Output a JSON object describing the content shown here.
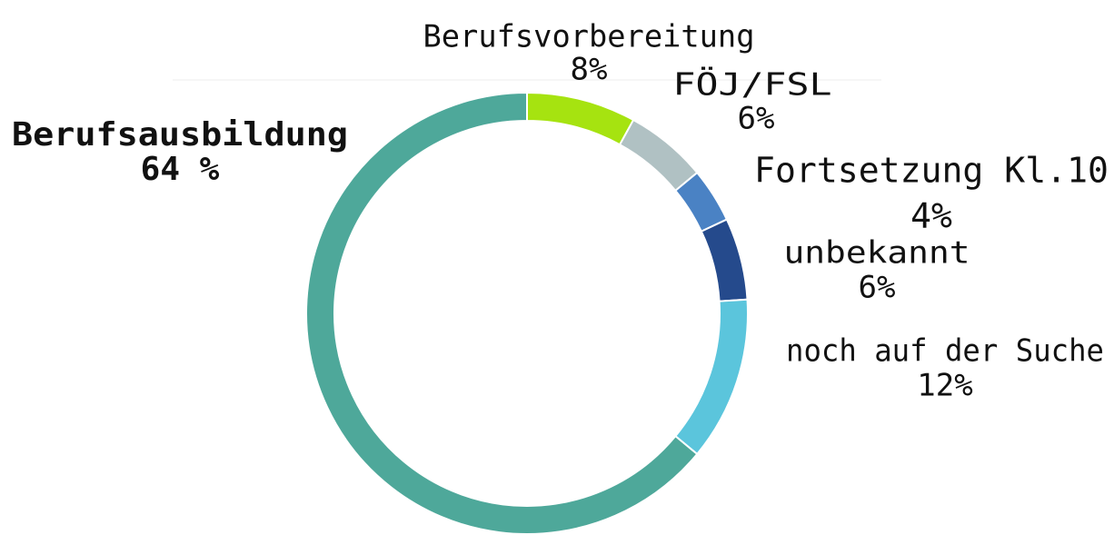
{
  "chart_data": {
    "type": "donut",
    "categories": [
      "Berufsvorbereitung",
      "FÖJ/FSL",
      "Fortsetzung Kl.10",
      "unbekannt",
      "noch auf der Suche",
      "Berufsausbildung"
    ],
    "values": [
      8,
      6,
      4,
      6,
      12,
      64
    ],
    "value_labels": [
      "8%",
      "6%",
      "4%",
      "6%",
      "12%",
      "64 %"
    ],
    "colors": [
      "#a6e310",
      "#b0c1c3",
      "#4a82c4",
      "#254a8c",
      "#5bc5dc",
      "#4ea89a"
    ]
  }
}
